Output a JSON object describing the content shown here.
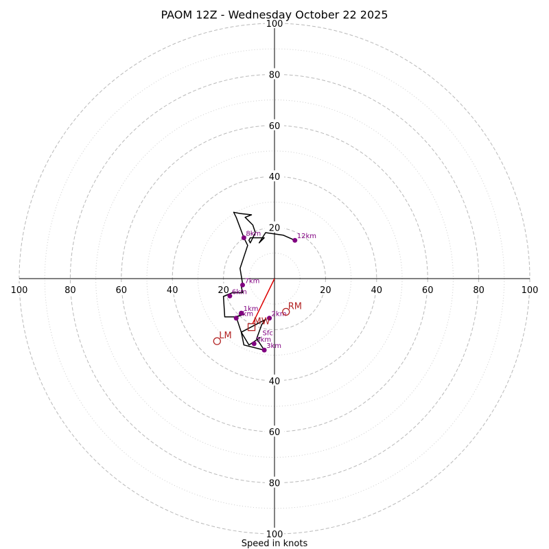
{
  "chart_data": {
    "type": "hodograph",
    "title": "PAOM 12Z - Wednesday October 22 2025",
    "xlabel": "Speed in knots",
    "rmax": 100,
    "ring_major": [
      20,
      40,
      60,
      80,
      100
    ],
    "ring_minor": [
      10,
      30,
      50,
      70,
      90
    ],
    "tick_labels": {
      "x_left": [
        "100",
        "80",
        "60",
        "40",
        "20"
      ],
      "x_right": [
        "20",
        "40",
        "60",
        "80",
        "100"
      ],
      "y_top": [
        "20",
        "40",
        "60",
        "80",
        "100"
      ],
      "y_bottom": [
        "40",
        "60",
        "80",
        "100"
      ]
    },
    "hodograph": {
      "units": "kt",
      "points": [
        [
          -5.5,
          -23
        ],
        [
          -10,
          -26
        ],
        [
          -13,
          -21
        ],
        [
          -3.5,
          -16
        ],
        [
          -5,
          -18
        ],
        [
          -7,
          -23.5
        ],
        [
          -4,
          -28
        ],
        [
          -12,
          -26
        ],
        [
          -13,
          -21
        ],
        [
          -15,
          -15
        ],
        [
          -12,
          -14
        ],
        [
          -15.5,
          -15
        ],
        [
          -19.5,
          -15
        ],
        [
          -20,
          -7
        ],
        [
          -16.5,
          -5.5
        ],
        [
          -12.5,
          -5.5
        ],
        [
          -13,
          -3
        ],
        [
          -12.5,
          -2
        ],
        [
          -13.5,
          4
        ],
        [
          -10.5,
          13
        ],
        [
          -12,
          16
        ],
        [
          -15,
          24
        ],
        [
          -16,
          26
        ],
        [
          -13.5,
          25.5
        ],
        [
          -9,
          25
        ],
        [
          -11.5,
          24
        ],
        [
          -8.5,
          21
        ],
        [
          -7.5,
          18
        ],
        [
          -9.5,
          14
        ],
        [
          -10,
          15
        ],
        [
          -9.5,
          16
        ],
        [
          -4,
          16
        ],
        [
          -6,
          14
        ],
        [
          -3.5,
          18
        ],
        [
          3.5,
          17
        ],
        [
          8,
          15
        ]
      ]
    },
    "height_markers": [
      {
        "label": "Sfc",
        "u": -5.5,
        "v": -23
      },
      {
        "label": "1km",
        "u": -13,
        "v": -13.5
      },
      {
        "label": "2km",
        "u": -2,
        "v": -15.5
      },
      {
        "label": "3km",
        "u": -4,
        "v": -28
      },
      {
        "label": "4km",
        "u": -15,
        "v": -15.5
      },
      {
        "label": "5km",
        "u": -8,
        "v": -25.5
      },
      {
        "label": "6km",
        "u": -17.5,
        "v": -6.8
      },
      {
        "label": "7km",
        "u": -12.5,
        "v": -2.5
      },
      {
        "label": "8km",
        "u": -12,
        "v": 16
      },
      {
        "label": "12km",
        "u": 8,
        "v": 15
      }
    ],
    "storm_motion": {
      "RM": {
        "label": "RM",
        "u": 4.5,
        "v": -13
      },
      "LM": {
        "label": "LM",
        "u": -22.5,
        "v": -24.5
      },
      "MW": {
        "label": "MW",
        "u": -9,
        "v": -19
      }
    },
    "shear_vector": {
      "from": [
        0,
        0
      ],
      "to": [
        -8.5,
        -17.5
      ]
    },
    "colors": {
      "grid_dash": "#b8b8b8",
      "grid_dot": "#cccccc",
      "hodograph_line": "#000000",
      "marker": "#800080",
      "storm_motion": "#b22222",
      "shear": "#dd0000"
    }
  }
}
